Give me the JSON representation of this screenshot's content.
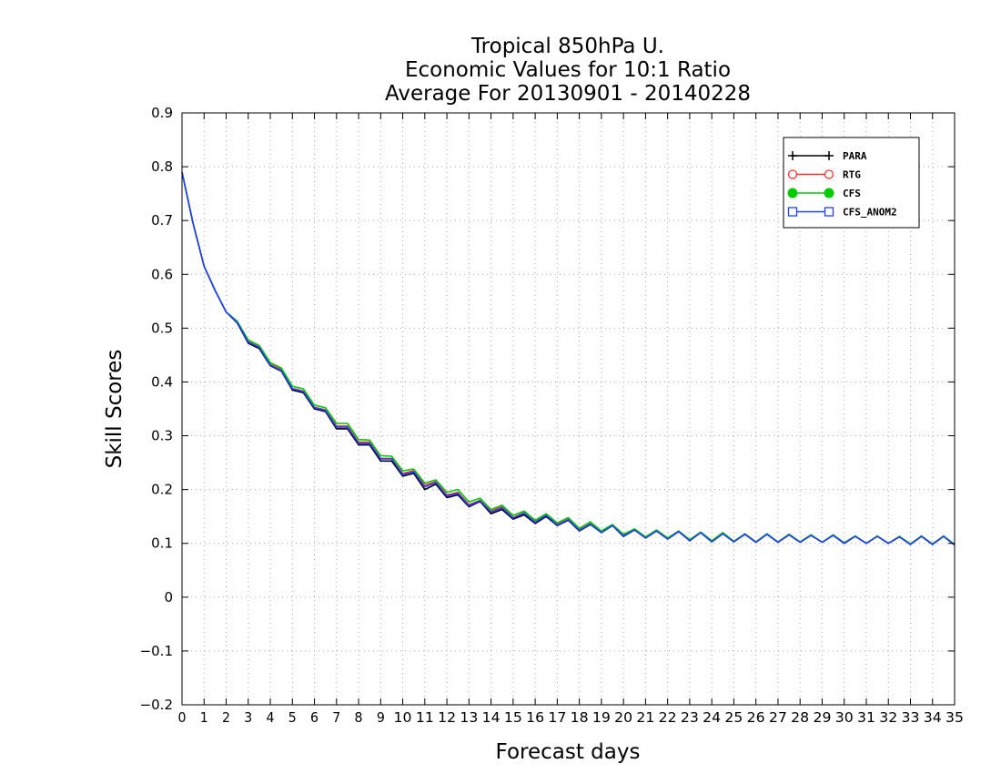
{
  "chart_data": {
    "type": "line",
    "title": [
      "Tropical 850hPa U.",
      "Economic Values for 10:1 Ratio",
      "Average For 20130901 - 20140228"
    ],
    "xlabel": "Forecast days",
    "ylabel": "Skill Scores",
    "xlim": [
      0,
      35
    ],
    "ylim": [
      -0.2,
      0.9
    ],
    "xticks": [
      "0",
      "1",
      "2",
      "3",
      "4",
      "5",
      "6",
      "7",
      "8",
      "9",
      "10",
      "11",
      "12",
      "13",
      "14",
      "15",
      "16",
      "17",
      "18",
      "19",
      "20",
      "21",
      "22",
      "23",
      "24",
      "25",
      "26",
      "27",
      "28",
      "29",
      "30",
      "31",
      "32",
      "33",
      "34",
      "35"
    ],
    "yticks": [
      "-0.2",
      "-0.1",
      "0",
      "0.1",
      "0.2",
      "0.3",
      "0.4",
      "0.5",
      "0.6",
      "0.7",
      "0.8",
      "0.9"
    ],
    "grid": true,
    "legend_position": "top-right",
    "x": [
      0,
      0.5,
      1,
      1.5,
      2,
      2.5,
      3,
      3.5,
      4,
      4.5,
      5,
      5.5,
      6,
      6.5,
      7,
      7.5,
      8,
      8.5,
      9,
      9.5,
      10,
      10.5,
      11,
      11.5,
      12,
      12.5,
      13,
      13.5,
      14,
      14.5,
      15,
      15.5,
      16,
      16.5,
      17,
      17.5,
      18,
      18.5,
      19,
      19.5,
      20,
      20.5,
      21,
      21.5,
      22,
      22.5,
      23,
      23.5,
      24,
      24.5,
      25,
      25.5,
      26,
      26.5,
      27,
      27.5,
      28,
      28.5,
      29,
      29.5,
      30,
      30.5,
      31,
      31.5,
      32,
      32.5,
      33,
      33.5,
      34,
      34.5,
      35
    ],
    "series": [
      {
        "name": "PARA",
        "color": "#000000",
        "marker": "plus",
        "values": [
          0.79,
          0.695,
          0.615,
          0.57,
          0.53,
          0.51,
          0.472,
          0.462,
          0.43,
          0.42,
          0.385,
          0.38,
          0.35,
          0.345,
          0.313,
          0.313,
          0.283,
          0.283,
          0.253,
          0.253,
          0.225,
          0.23,
          0.2,
          0.21,
          0.185,
          0.19,
          0.168,
          0.178,
          0.155,
          0.163,
          0.145,
          0.153,
          0.137,
          0.15,
          0.133,
          0.143,
          0.123,
          0.135,
          0.12,
          0.133,
          0.113,
          0.125,
          0.11,
          0.123,
          0.108,
          0.122,
          0.105,
          0.12,
          0.103,
          0.118,
          0.103,
          0.117,
          0.102,
          0.117,
          0.102,
          0.116,
          0.102,
          0.115,
          0.102,
          0.115,
          0.1,
          0.113,
          0.1,
          0.113,
          0.1,
          0.112,
          0.098,
          0.113,
          0.098,
          0.113,
          0.097
        ]
      },
      {
        "name": "RTG",
        "color": "#ff3030",
        "marker": "open-circle",
        "values": [
          0.79,
          0.695,
          0.615,
          0.57,
          0.53,
          0.512,
          0.475,
          0.465,
          0.433,
          0.423,
          0.388,
          0.383,
          0.353,
          0.348,
          0.318,
          0.318,
          0.288,
          0.288,
          0.258,
          0.258,
          0.23,
          0.235,
          0.208,
          0.215,
          0.19,
          0.195,
          0.172,
          0.18,
          0.16,
          0.168,
          0.148,
          0.157,
          0.14,
          0.153,
          0.135,
          0.145,
          0.125,
          0.137,
          0.12,
          0.133,
          0.115,
          0.125,
          0.11,
          0.123,
          0.108,
          0.122,
          0.105,
          0.12,
          0.103,
          0.118,
          0.103,
          0.117,
          0.102,
          0.117,
          0.102,
          0.116,
          0.102,
          0.115,
          0.102,
          0.115,
          0.1,
          0.113,
          0.1,
          0.113,
          0.1,
          0.112,
          0.098,
          0.113,
          0.098,
          0.113,
          0.097
        ]
      },
      {
        "name": "CFS",
        "color": "#00cc00",
        "marker": "filled-circle",
        "values": [
          0.79,
          0.695,
          0.615,
          0.57,
          0.53,
          0.513,
          0.478,
          0.468,
          0.436,
          0.426,
          0.392,
          0.387,
          0.357,
          0.352,
          0.323,
          0.323,
          0.293,
          0.292,
          0.263,
          0.262,
          0.235,
          0.238,
          0.212,
          0.218,
          0.195,
          0.2,
          0.177,
          0.184,
          0.163,
          0.171,
          0.152,
          0.16,
          0.143,
          0.155,
          0.138,
          0.148,
          0.128,
          0.14,
          0.123,
          0.135,
          0.117,
          0.127,
          0.112,
          0.125,
          0.11,
          0.123,
          0.107,
          0.121,
          0.105,
          0.12,
          0.104,
          0.118,
          0.103,
          0.118,
          0.103,
          0.117,
          0.103,
          0.116,
          0.102,
          0.116,
          0.101,
          0.114,
          0.1,
          0.114,
          0.1,
          0.113,
          0.099,
          0.114,
          0.099,
          0.114,
          0.098
        ]
      },
      {
        "name": "CFS_ANOM2",
        "color": "#2040ff",
        "marker": "open-square",
        "values": [
          0.79,
          0.695,
          0.615,
          0.57,
          0.53,
          0.511,
          0.474,
          0.464,
          0.431,
          0.421,
          0.387,
          0.382,
          0.352,
          0.347,
          0.316,
          0.316,
          0.286,
          0.286,
          0.257,
          0.257,
          0.228,
          0.233,
          0.205,
          0.213,
          0.188,
          0.193,
          0.17,
          0.179,
          0.158,
          0.166,
          0.147,
          0.156,
          0.139,
          0.152,
          0.134,
          0.144,
          0.124,
          0.136,
          0.12,
          0.133,
          0.114,
          0.125,
          0.11,
          0.123,
          0.108,
          0.122,
          0.105,
          0.12,
          0.103,
          0.118,
          0.103,
          0.117,
          0.102,
          0.117,
          0.102,
          0.116,
          0.102,
          0.115,
          0.102,
          0.115,
          0.1,
          0.113,
          0.1,
          0.113,
          0.1,
          0.112,
          0.098,
          0.113,
          0.098,
          0.113,
          0.097
        ]
      }
    ]
  }
}
